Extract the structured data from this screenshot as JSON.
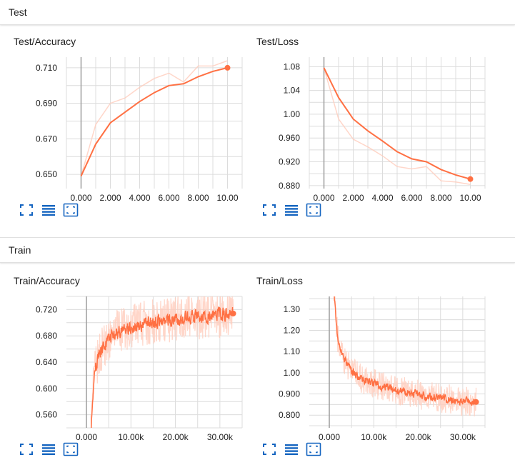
{
  "sections": [
    {
      "title": "Test",
      "charts": [
        {
          "title": "Test/Accuracy"
        },
        {
          "title": "Test/Loss"
        }
      ]
    },
    {
      "title": "Train",
      "charts": [
        {
          "title": "Train/Accuracy"
        },
        {
          "title": "Train/Loss"
        }
      ]
    }
  ],
  "colors": {
    "line": "#ff7043",
    "raw": "#ffccbc",
    "grid": "#dcdcdc",
    "axis": "#9e9e9e",
    "tool": "#1565c0"
  },
  "tool_icons": [
    "fit-to-screen-icon",
    "toggle-log-scale-icon",
    "reset-zoom-icon"
  ],
  "chart_data": [
    {
      "type": "line",
      "title": "Test/Accuracy",
      "xlim": [
        -1,
        11
      ],
      "ylim": [
        0.642,
        0.716
      ],
      "xticks": [
        0,
        2,
        4,
        6,
        8,
        10
      ],
      "xtick_labels": [
        "0.000",
        "2.000",
        "4.000",
        "6.000",
        "8.000",
        "10.00"
      ],
      "yticks": [
        0.65,
        0.67,
        0.69,
        0.71
      ],
      "ytick_labels": [
        "0.650",
        "0.670",
        "0.690",
        "0.710"
      ],
      "series": [
        {
          "kind": "raw",
          "x": [
            0,
            1,
            2,
            3,
            4,
            5,
            6,
            7,
            8,
            9,
            10
          ],
          "y": [
            0.649,
            0.678,
            0.69,
            0.693,
            0.699,
            0.704,
            0.707,
            0.702,
            0.711,
            0.711,
            0.714
          ]
        },
        {
          "kind": "smoothed",
          "x": [
            0,
            1,
            2,
            3,
            4,
            5,
            6,
            7,
            8,
            9,
            10
          ],
          "y": [
            0.649,
            0.667,
            0.679,
            0.685,
            0.691,
            0.696,
            0.7,
            0.701,
            0.705,
            0.708,
            0.71
          ]
        }
      ]
    },
    {
      "type": "line",
      "title": "Test/Loss",
      "xlim": [
        -1,
        11
      ],
      "ylim": [
        0.875,
        1.096
      ],
      "xticks": [
        0,
        2,
        4,
        6,
        8,
        10
      ],
      "xtick_labels": [
        "0.000",
        "2.000",
        "4.000",
        "6.000",
        "8.000",
        "10.00"
      ],
      "yticks": [
        0.88,
        0.92,
        0.96,
        1.0,
        1.04,
        1.08
      ],
      "ytick_labels": [
        "0.880",
        "0.920",
        "0.960",
        "1.00",
        "1.04",
        "1.08"
      ],
      "series": [
        {
          "kind": "raw",
          "x": [
            0,
            1,
            2,
            3,
            4,
            5,
            6,
            7,
            8,
            9,
            10
          ],
          "y": [
            1.078,
            0.992,
            0.958,
            0.945,
            0.93,
            0.912,
            0.908,
            0.912,
            0.888,
            0.886,
            0.882
          ]
        },
        {
          "kind": "smoothed",
          "x": [
            0,
            1,
            2,
            3,
            4,
            5,
            6,
            7,
            8,
            9,
            10
          ],
          "y": [
            1.078,
            1.028,
            0.992,
            0.972,
            0.955,
            0.937,
            0.925,
            0.92,
            0.907,
            0.898,
            0.891
          ]
        }
      ]
    },
    {
      "type": "line",
      "title": "Train/Accuracy",
      "xlim": [
        -4500,
        35000
      ],
      "ylim": [
        0.54,
        0.74
      ],
      "xticks": [
        0,
        10000,
        20000,
        30000
      ],
      "xtick_labels": [
        "0.000",
        "10.00k",
        "20.00k",
        "30.00k"
      ],
      "yticks": [
        0.56,
        0.6,
        0.64,
        0.68,
        0.72
      ],
      "ytick_labels": [
        "0.560",
        "0.600",
        "0.640",
        "0.680",
        "0.720"
      ],
      "series": [
        {
          "kind": "smoothed",
          "x": [
            1000,
            1500,
            2000,
            3000,
            4000,
            5000,
            6000,
            8000,
            10000,
            12000,
            14000,
            16000,
            18000,
            20000,
            22000,
            24000,
            26000,
            28000,
            30000,
            32000,
            33000
          ],
          "y": [
            0.54,
            0.6,
            0.63,
            0.655,
            0.668,
            0.675,
            0.682,
            0.688,
            0.693,
            0.697,
            0.7,
            0.702,
            0.704,
            0.706,
            0.708,
            0.709,
            0.71,
            0.711,
            0.712,
            0.713,
            0.714
          ]
        }
      ],
      "noise": {
        "raw": 0.035,
        "smoothed": 0.014
      }
    },
    {
      "type": "line",
      "title": "Train/Loss",
      "xlim": [
        -4500,
        35000
      ],
      "ylim": [
        0.74,
        1.36
      ],
      "xticks": [
        0,
        10000,
        20000,
        30000
      ],
      "xtick_labels": [
        "0.000",
        "10.00k",
        "20.00k",
        "30.00k"
      ],
      "yticks": [
        0.8,
        0.9,
        1.0,
        1.1,
        1.2,
        1.3
      ],
      "ytick_labels": [
        "0.800",
        "0.900",
        "1.00",
        "1.10",
        "1.20",
        "1.30"
      ],
      "series": [
        {
          "kind": "smoothed",
          "x": [
            1000,
            1500,
            2000,
            3000,
            4000,
            5000,
            6000,
            8000,
            10000,
            12000,
            14000,
            16000,
            18000,
            20000,
            22000,
            24000,
            26000,
            28000,
            30000,
            32000,
            33000
          ],
          "y": [
            1.4,
            1.25,
            1.15,
            1.08,
            1.04,
            1.01,
            0.99,
            0.965,
            0.95,
            0.935,
            0.925,
            0.915,
            0.905,
            0.898,
            0.89,
            0.884,
            0.878,
            0.873,
            0.868,
            0.864,
            0.862
          ]
        }
      ],
      "noise": {
        "raw": 0.07,
        "smoothed": 0.025
      }
    }
  ]
}
